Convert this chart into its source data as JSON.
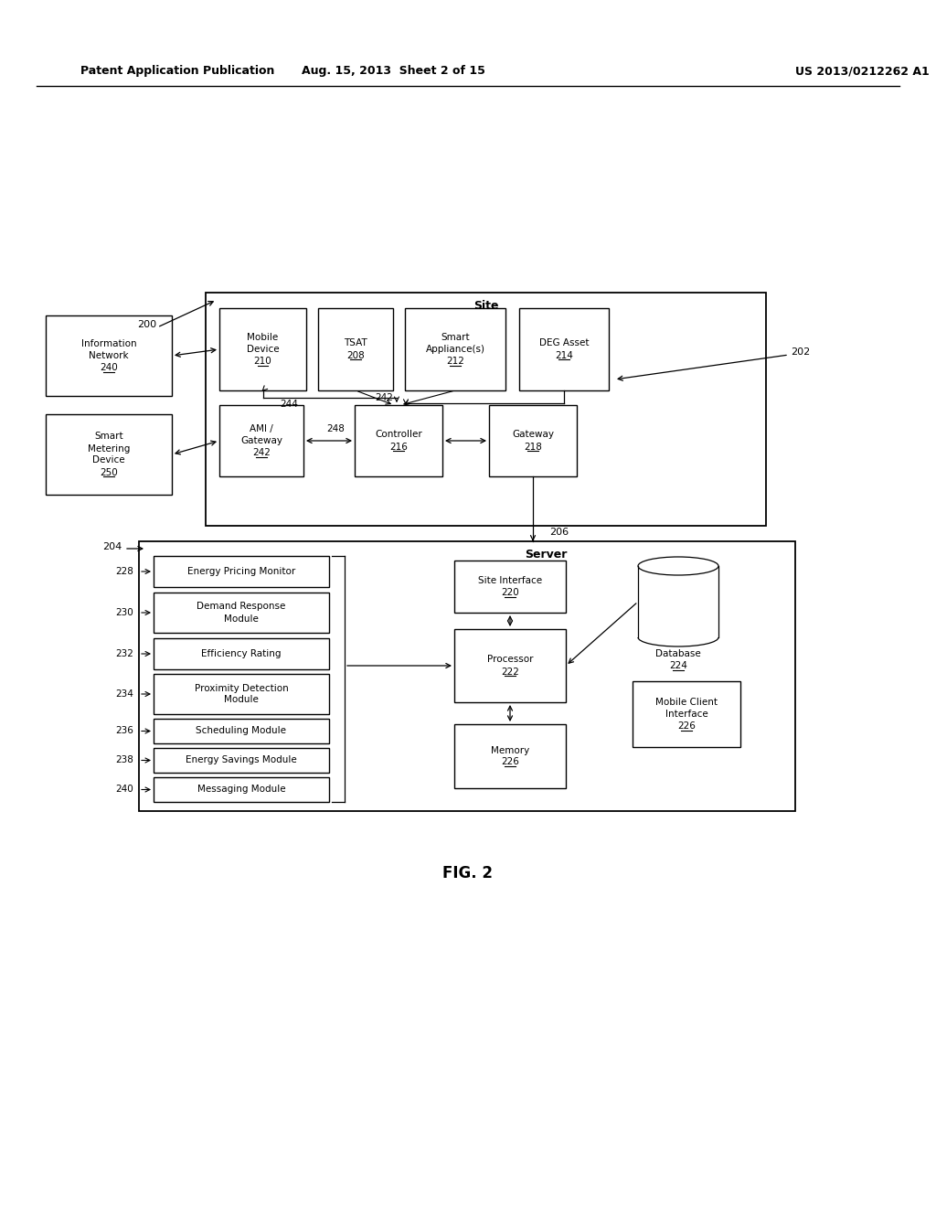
{
  "bg_color": "#ffffff",
  "line_color": "#000000",
  "header_left": "Patent Application Publication",
  "header_mid": "Aug. 15, 2013  Sheet 2 of 15",
  "header_right": "US 2013/0212262 A1",
  "fig_caption": "FIG. 2",
  "site_label": "Site",
  "server_label": "Server",
  "info_net_label": "Information\nNetwork\n240",
  "smart_meter_label": "Smart\nMetering\nDevice\n250",
  "mobile_device_label": "Mobile\nDevice\n210",
  "tsat_label": "TSAT\n208",
  "smart_appl_label": "Smart\nAppliance(s)\n212",
  "deg_asset_label": "DEG Asset\n214",
  "ami_gw_label": "AMI /\nGateway\n242",
  "controller_label": "Controller\n216",
  "gateway_label": "Gateway\n218",
  "modules": [
    {
      "label": "Energy Pricing Monitor",
      "num": "228"
    },
    {
      "label": "Demand Response\nModule",
      "num": "230"
    },
    {
      "label": "Efficiency Rating",
      "num": "232"
    },
    {
      "label": "Proximity Detection\nModule",
      "num": "234"
    },
    {
      "label": "Scheduling Module",
      "num": "236"
    },
    {
      "label": "Energy Savings Module",
      "num": "238"
    },
    {
      "label": "Messaging Module",
      "num": "240"
    }
  ],
  "site_iface_label": "Site Interface\n220",
  "processor_label": "Processor\n222",
  "memory_label": "Memory\n226",
  "database_label": "Database\n224",
  "mob_client_label": "Mobile Client\nInterface\n226",
  "ref_200": "200",
  "ref_202": "202",
  "ref_204": "204",
  "ref_206": "206",
  "ref_244": "244",
  "ref_242w": "242",
  "ref_248": "248"
}
